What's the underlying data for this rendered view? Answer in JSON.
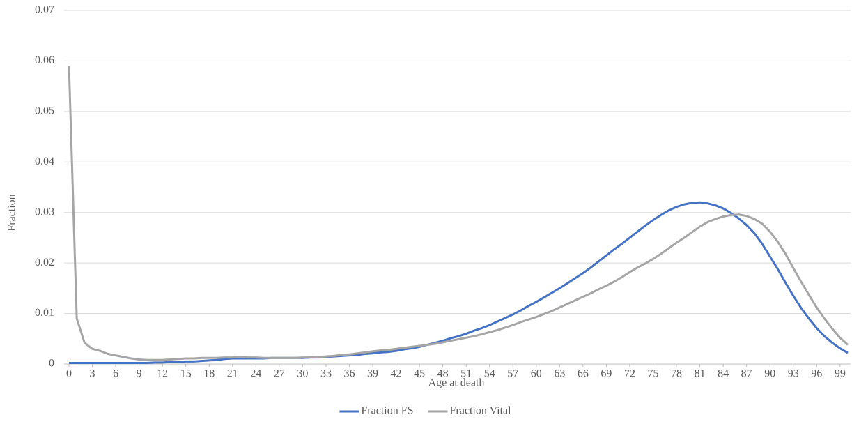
{
  "chart_data": {
    "type": "line",
    "x_label": "Age at death",
    "y_label": "Fraction",
    "x": [
      0,
      1,
      2,
      3,
      4,
      5,
      6,
      7,
      8,
      9,
      10,
      11,
      12,
      13,
      14,
      15,
      16,
      17,
      18,
      19,
      20,
      21,
      22,
      23,
      24,
      25,
      26,
      27,
      28,
      29,
      30,
      31,
      32,
      33,
      34,
      35,
      36,
      37,
      38,
      39,
      40,
      41,
      42,
      43,
      44,
      45,
      46,
      47,
      48,
      49,
      50,
      51,
      52,
      53,
      54,
      55,
      56,
      57,
      58,
      59,
      60,
      61,
      62,
      63,
      64,
      65,
      66,
      67,
      68,
      69,
      70,
      71,
      72,
      73,
      74,
      75,
      76,
      77,
      78,
      79,
      80,
      81,
      82,
      83,
      84,
      85,
      86,
      87,
      88,
      89,
      90,
      91,
      92,
      93,
      94,
      95,
      96,
      97,
      98,
      99,
      100
    ],
    "xlim": [
      0,
      100
    ],
    "xticks": [
      0,
      3,
      6,
      9,
      12,
      15,
      18,
      21,
      24,
      27,
      30,
      33,
      36,
      39,
      42,
      45,
      48,
      51,
      54,
      57,
      60,
      63,
      66,
      69,
      72,
      75,
      78,
      81,
      84,
      87,
      90,
      93,
      96,
      99
    ],
    "ylim": [
      0,
      0.07
    ],
    "yticks": [
      0,
      0.01,
      0.02,
      0.03,
      0.04,
      0.05,
      0.06,
      0.07
    ],
    "grid": true,
    "legend": "bottom",
    "series": [
      {
        "name": "Fraction FS",
        "color": "#4472c4",
        "values": [
          0.0002,
          0.0002,
          0.0002,
          0.0002,
          0.0002,
          0.0002,
          0.0002,
          0.0002,
          0.0002,
          0.0002,
          0.0002,
          0.0003,
          0.0003,
          0.0004,
          0.0004,
          0.0005,
          0.0005,
          0.0006,
          0.0007,
          0.0008,
          0.001,
          0.0011,
          0.0011,
          0.0011,
          0.0011,
          0.0011,
          0.0012,
          0.0012,
          0.0012,
          0.0012,
          0.0012,
          0.0013,
          0.0013,
          0.0014,
          0.0015,
          0.0016,
          0.0017,
          0.0018,
          0.002,
          0.0021,
          0.0023,
          0.0024,
          0.0026,
          0.0029,
          0.0031,
          0.0034,
          0.0038,
          0.0042,
          0.0046,
          0.0051,
          0.0055,
          0.006,
          0.0066,
          0.0071,
          0.0077,
          0.0084,
          0.0091,
          0.0098,
          0.0106,
          0.0115,
          0.0123,
          0.0132,
          0.0141,
          0.015,
          0.016,
          0.017,
          0.018,
          0.0191,
          0.0203,
          0.0215,
          0.0227,
          0.0238,
          0.025,
          0.0262,
          0.0274,
          0.0285,
          0.0295,
          0.0304,
          0.0311,
          0.0316,
          0.0319,
          0.032,
          0.0318,
          0.0314,
          0.0308,
          0.0299,
          0.0288,
          0.0275,
          0.0259,
          0.0238,
          0.0213,
          0.0188,
          0.0161,
          0.0135,
          0.0111,
          0.009,
          0.0071,
          0.0055,
          0.0042,
          0.0031,
          0.0022
        ]
      },
      {
        "name": "Fraction Vital",
        "color": "#a5a5a5",
        "values": [
          0.059,
          0.009,
          0.0042,
          0.003,
          0.0026,
          0.002,
          0.0017,
          0.0014,
          0.0011,
          0.0009,
          0.0008,
          0.0008,
          0.0008,
          0.0009,
          0.001,
          0.0011,
          0.0011,
          0.0012,
          0.0012,
          0.0012,
          0.0013,
          0.0013,
          0.0014,
          0.0013,
          0.0013,
          0.0012,
          0.0012,
          0.0012,
          0.0012,
          0.0012,
          0.0013,
          0.0013,
          0.0014,
          0.0015,
          0.0016,
          0.0018,
          0.0019,
          0.0021,
          0.0023,
          0.0025,
          0.0027,
          0.0028,
          0.003,
          0.0032,
          0.0034,
          0.0036,
          0.0038,
          0.004,
          0.0043,
          0.0046,
          0.0049,
          0.0052,
          0.0055,
          0.0059,
          0.0063,
          0.0067,
          0.0072,
          0.0077,
          0.0083,
          0.0088,
          0.0093,
          0.0099,
          0.0105,
          0.0112,
          0.0119,
          0.0126,
          0.0133,
          0.014,
          0.0148,
          0.0155,
          0.0163,
          0.0172,
          0.0182,
          0.0191,
          0.0199,
          0.0208,
          0.0218,
          0.0229,
          0.024,
          0.025,
          0.0261,
          0.0272,
          0.0281,
          0.0287,
          0.0292,
          0.0295,
          0.0296,
          0.0293,
          0.0287,
          0.0278,
          0.0262,
          0.0242,
          0.0218,
          0.019,
          0.0163,
          0.0137,
          0.0112,
          0.009,
          0.007,
          0.0052,
          0.0038
        ]
      }
    ]
  }
}
